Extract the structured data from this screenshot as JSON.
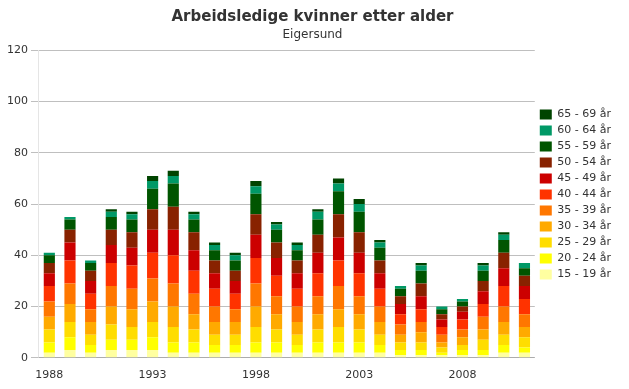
{
  "chart_data": {
    "type": "bar",
    "title": "Arbeidsledige kvinner etter alder",
    "subtitle": "Eigersund",
    "categories": [
      "1988",
      null,
      null,
      null,
      null,
      "1993",
      null,
      null,
      null,
      null,
      "1998",
      null,
      null,
      null,
      null,
      "2003",
      null,
      null,
      null,
      null,
      "2008",
      null,
      null,
      null
    ],
    "series": [
      {
        "name": "15 - 19 år",
        "color": "#ffffa0",
        "values": [
          2,
          3,
          2,
          3,
          3,
          3,
          2,
          2,
          2,
          2,
          2,
          2,
          2,
          2,
          2,
          2,
          2,
          1,
          1,
          1,
          1,
          1,
          2,
          2
        ]
      },
      {
        "name": "20 - 24 år",
        "color": "#ffff00",
        "values": [
          4,
          5,
          3,
          4,
          4,
          5,
          4,
          4,
          3,
          3,
          4,
          4,
          3,
          4,
          4,
          4,
          3,
          2,
          2,
          1,
          2,
          2,
          3,
          2
        ]
      },
      {
        "name": "25 - 29 år",
        "color": "#ffdd00",
        "values": [
          5,
          6,
          4,
          6,
          5,
          6,
          6,
          5,
          4,
          4,
          6,
          5,
          4,
          5,
          6,
          5,
          4,
          3,
          3,
          2,
          2,
          4,
          4,
          4
        ]
      },
      {
        "name": "30 - 34 år",
        "color": "#ffaa00",
        "values": [
          5,
          7,
          5,
          7,
          7,
          8,
          8,
          6,
          5,
          5,
          8,
          6,
          5,
          6,
          7,
          6,
          5,
          3,
          4,
          2,
          3,
          4,
          5,
          4
        ]
      },
      {
        "name": "35 - 39 år",
        "color": "#ff7700",
        "values": [
          6,
          8,
          5,
          8,
          8,
          9,
          9,
          8,
          6,
          5,
          9,
          7,
          6,
          7,
          9,
          7,
          6,
          4,
          4,
          3,
          3,
          5,
          6,
          5
        ]
      },
      {
        "name": "40 - 44 år",
        "color": "#ff3300",
        "values": [
          6,
          9,
          6,
          9,
          9,
          10,
          11,
          9,
          7,
          6,
          10,
          8,
          7,
          9,
          10,
          9,
          7,
          4,
          5,
          3,
          4,
          5,
          8,
          6
        ]
      },
      {
        "name": "45 - 49 år",
        "color": "#cc0000",
        "values": [
          5,
          7,
          5,
          7,
          7,
          9,
          10,
          8,
          6,
          5,
          9,
          7,
          6,
          8,
          9,
          8,
          6,
          4,
          5,
          3,
          3,
          5,
          7,
          5
        ]
      },
      {
        "name": "50 - 54 år",
        "color": "#882200",
        "values": [
          4,
          5,
          4,
          6,
          6,
          8,
          9,
          7,
          5,
          4,
          8,
          6,
          5,
          7,
          9,
          8,
          5,
          3,
          5,
          2,
          2,
          4,
          6,
          4
        ]
      },
      {
        "name": "55 - 59 år",
        "color": "#005500",
        "values": [
          3,
          4,
          3,
          5,
          5,
          8,
          9,
          5,
          4,
          4,
          8,
          5,
          4,
          6,
          9,
          8,
          5,
          3,
          5,
          2,
          2,
          4,
          5,
          3
        ]
      },
      {
        "name": "60 - 64 år",
        "color": "#009966",
        "values": [
          1,
          1,
          1,
          2,
          2,
          3,
          3,
          2,
          2,
          2,
          3,
          2,
          2,
          3,
          3,
          3,
          2,
          1,
          2,
          1,
          1,
          2,
          2,
          2
        ]
      },
      {
        "name": "65 - 69 år",
        "color": "#004400",
        "values": [
          0,
          0,
          0,
          1,
          1,
          2,
          2,
          1,
          1,
          1,
          2,
          1,
          1,
          1,
          2,
          2,
          1,
          0,
          1,
          0,
          0,
          1,
          1,
          0
        ]
      }
    ],
    "ylim": [
      0,
      120
    ],
    "yticks": [
      0,
      20,
      40,
      60,
      80,
      100,
      120
    ],
    "grid": true,
    "legend": "right",
    "stacked": true
  }
}
